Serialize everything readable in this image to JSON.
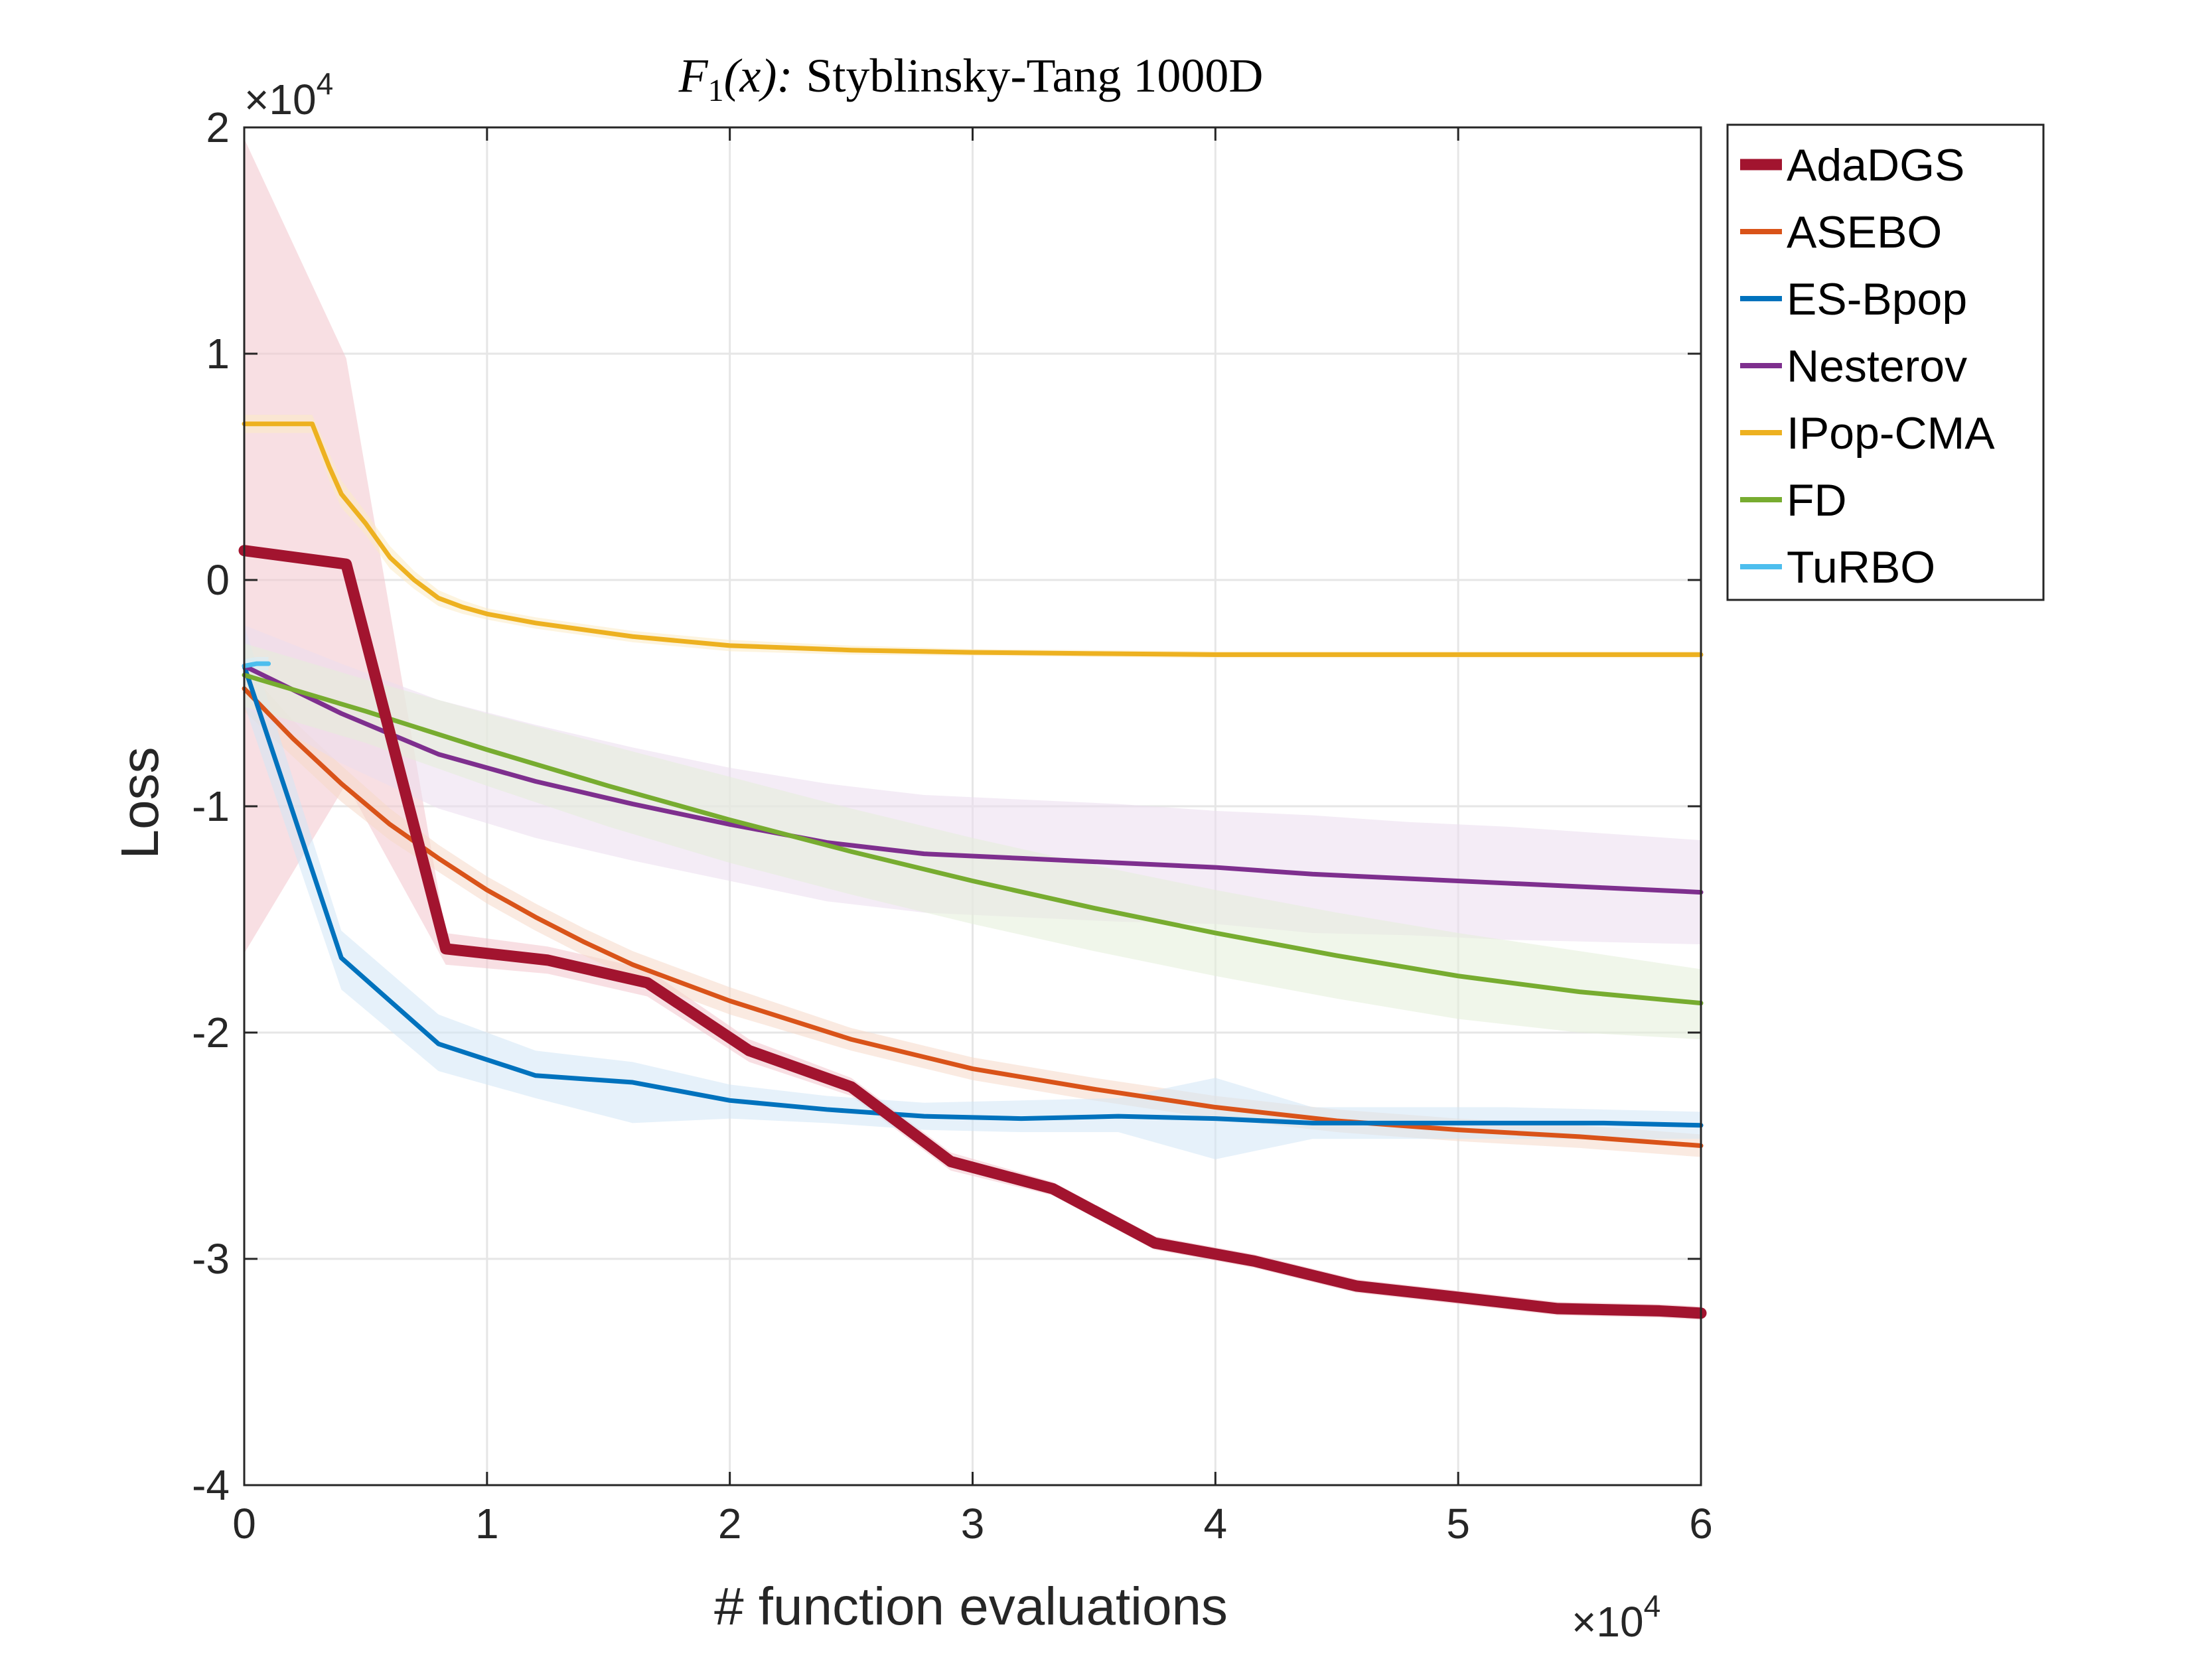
{
  "chart_data": {
    "type": "line",
    "title": {
      "func_prefix": "F",
      "func_sub": "1",
      "func_arg": "(x):",
      "rest": "Styblinsky-Tang 1000D"
    },
    "xlabel": "# function evaluations",
    "ylabel": "Loss",
    "x_multiplier": {
      "base": "×10",
      "exp": "4"
    },
    "y_multiplier": {
      "base": "×10",
      "exp": "4"
    },
    "xlim": [
      0,
      60000
    ],
    "ylim": [
      -40000,
      20000
    ],
    "x_ticks": [
      0,
      10000,
      20000,
      30000,
      40000,
      50000,
      60000
    ],
    "x_tick_labels": [
      "0",
      "1",
      "2",
      "3",
      "4",
      "5",
      "6"
    ],
    "y_ticks": [
      -40000,
      -30000,
      -20000,
      -10000,
      0,
      10000,
      20000
    ],
    "y_tick_labels": [
      "-4",
      "-3",
      "-2",
      "-1",
      "0",
      "1",
      "2"
    ],
    "grid": true,
    "legend_position": "outside-top-right",
    "series": [
      {
        "name": "AdaDGS",
        "color": "#A2142F",
        "width": 17,
        "x": [
          0,
          4200,
          8300,
          12500,
          16600,
          20800,
          25000,
          29100,
          33300,
          37500,
          41600,
          45800,
          50000,
          54100,
          58300,
          60000
        ],
        "y": [
          1300,
          700,
          -16300,
          -16800,
          -17800,
          -20800,
          -22400,
          -25700,
          -26900,
          -29300,
          -30100,
          -31200,
          -31700,
          -32200,
          -32300,
          -32400
        ],
        "band_upper": [
          19500,
          9800,
          -15600,
          -16200,
          -17200,
          -20300,
          -22000,
          -25300,
          -26600,
          -29000,
          -29800,
          -30900,
          -31400,
          -31900,
          -32000,
          -32100
        ],
        "band_lower": [
          -16500,
          -9000,
          -17000,
          -17400,
          -18400,
          -21300,
          -22800,
          -26100,
          -27200,
          -29600,
          -30400,
          -31500,
          -32000,
          -32500,
          -32600,
          -32700
        ],
        "band_color": "#F2C4CC"
      },
      {
        "name": "ASEBO",
        "color": "#D95319",
        "width": 7,
        "x": [
          0,
          2000,
          4000,
          6000,
          8000,
          10000,
          12000,
          14000,
          16000,
          18000,
          20000,
          25000,
          30000,
          35000,
          40000,
          45000,
          50000,
          55000,
          60000
        ],
        "y": [
          -4800,
          -7000,
          -9000,
          -10800,
          -12300,
          -13700,
          -14900,
          -16000,
          -17000,
          -17800,
          -18600,
          -20300,
          -21600,
          -22500,
          -23300,
          -23900,
          -24300,
          -24600,
          -25000
        ],
        "band_upper": [
          -3800,
          -6200,
          -8200,
          -10100,
          -11700,
          -13100,
          -14300,
          -15400,
          -16400,
          -17200,
          -18000,
          -19800,
          -21100,
          -22000,
          -22800,
          -23400,
          -23800,
          -24100,
          -24500
        ],
        "band_lower": [
          -5800,
          -7800,
          -9800,
          -11500,
          -12900,
          -14300,
          -15500,
          -16600,
          -17600,
          -18400,
          -19200,
          -20800,
          -22100,
          -23000,
          -23800,
          -24400,
          -24800,
          -25100,
          -25500
        ],
        "band_color": "#F6D8C8"
      },
      {
        "name": "ES-Bpop",
        "color": "#0072BD",
        "width": 7,
        "x": [
          0,
          4000,
          8000,
          12000,
          16000,
          20000,
          24000,
          28000,
          32000,
          36000,
          40000,
          44000,
          48000,
          52000,
          56000,
          60000
        ],
        "y": [
          -3800,
          -16700,
          -20500,
          -21900,
          -22200,
          -23000,
          -23400,
          -23700,
          -23800,
          -23700,
          -23800,
          -24000,
          -24000,
          -24000,
          -24000,
          -24100
        ],
        "band_upper": [
          -2000,
          -15500,
          -19200,
          -20800,
          -21300,
          -22300,
          -22800,
          -23100,
          -23000,
          -22900,
          -22000,
          -23300,
          -23300,
          -23300,
          -23400,
          -23500
        ],
        "band_lower": [
          -5500,
          -18100,
          -21700,
          -22900,
          -24000,
          -23800,
          -24000,
          -24300,
          -24400,
          -24400,
          -25600,
          -24700,
          -24700,
          -24700,
          -24700,
          -24700
        ],
        "band_color": "#D2E6F5"
      },
      {
        "name": "Nesterov",
        "color": "#7E2F8E",
        "width": 7,
        "x": [
          0,
          4000,
          8000,
          12000,
          16000,
          20000,
          24000,
          28000,
          32000,
          36000,
          40000,
          44000,
          48000,
          52000,
          56000,
          60000
        ],
        "y": [
          -3800,
          -5900,
          -7700,
          -8900,
          -9900,
          -10800,
          -11600,
          -12100,
          -12300,
          -12500,
          -12700,
          -13000,
          -13200,
          -13400,
          -13600,
          -13800
        ],
        "band_upper": [
          -2000,
          -3700,
          -5300,
          -6400,
          -7400,
          -8300,
          -9000,
          -9500,
          -9700,
          -9900,
          -10200,
          -10400,
          -10700,
          -10900,
          -11200,
          -11500
        ],
        "band_lower": [
          -5600,
          -8100,
          -10100,
          -11400,
          -12400,
          -13300,
          -14200,
          -14700,
          -14900,
          -15100,
          -15200,
          -15600,
          -15700,
          -15900,
          -16000,
          -16100
        ],
        "band_color": "#EBDDEE"
      },
      {
        "name": "IPop-CMA",
        "color": "#EDB120",
        "width": 7,
        "x": [
          0,
          1000,
          2000,
          2800,
          3500,
          4000,
          5000,
          6000,
          7000,
          8000,
          9000,
          10000,
          12000,
          14000,
          16000,
          18000,
          20000,
          25000,
          30000,
          35000,
          40000,
          45000,
          50000,
          55000,
          60000
        ],
        "y": [
          6900,
          6900,
          6900,
          6900,
          5000,
          3800,
          2500,
          1000,
          0,
          -800,
          -1200,
          -1500,
          -1900,
          -2200,
          -2500,
          -2700,
          -2900,
          -3100,
          -3200,
          -3250,
          -3300,
          -3300,
          -3300,
          -3300,
          -3300
        ],
        "band_upper": [
          7300,
          7300,
          7300,
          7300,
          5600,
          4400,
          3000,
          1500,
          400,
          -450,
          -900,
          -1250,
          -1650,
          -1950,
          -2250,
          -2450,
          -2650,
          -2900,
          -3050,
          -3100,
          -3150,
          -3150,
          -3150,
          -3150,
          -3150
        ],
        "band_lower": [
          6500,
          6500,
          6500,
          6500,
          4400,
          3200,
          2000,
          500,
          -400,
          -1150,
          -1500,
          -1750,
          -2150,
          -2450,
          -2750,
          -2950,
          -3150,
          -3300,
          -3350,
          -3400,
          -3450,
          -3450,
          -3450,
          -3450,
          -3450
        ],
        "band_color": "#FBEBC4"
      },
      {
        "name": "FD",
        "color": "#77AC30",
        "width": 7,
        "x": [
          0,
          5000,
          10000,
          15000,
          20000,
          25000,
          30000,
          35000,
          40000,
          45000,
          50000,
          55000,
          60000
        ],
        "y": [
          -4200,
          -5800,
          -7500,
          -9100,
          -10600,
          -12000,
          -13300,
          -14500,
          -15600,
          -16600,
          -17500,
          -18200,
          -18700
        ],
        "band_upper": [
          -2800,
          -4400,
          -5900,
          -7300,
          -8700,
          -10100,
          -11400,
          -12600,
          -13700,
          -14700,
          -15600,
          -16400,
          -17200
        ],
        "band_lower": [
          -5600,
          -7200,
          -9100,
          -10900,
          -12500,
          -13900,
          -15200,
          -16400,
          -17500,
          -18500,
          -19400,
          -20000,
          -20300
        ],
        "band_color": "#E4EFD8"
      },
      {
        "name": "TuRBO",
        "color": "#4DBEEE",
        "width": 7,
        "x": [
          0,
          500,
          1000
        ],
        "y": [
          -3800,
          -3700,
          -3700
        ],
        "band_upper": [
          -3500,
          -3400,
          -3400
        ],
        "band_lower": [
          -4100,
          -4000,
          -4000
        ],
        "band_color": "#D6EFFB"
      }
    ]
  }
}
